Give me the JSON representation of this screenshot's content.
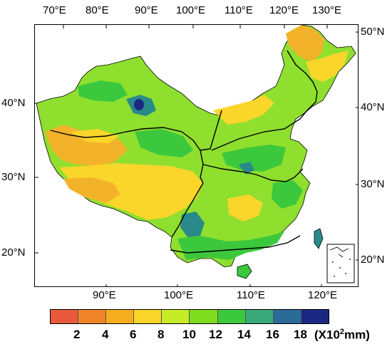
{
  "top_lon_labels": [
    "70°E",
    "80°E",
    "90°E",
    "100°E",
    "110°E",
    "120°E",
    "130°E"
  ],
  "bottom_lon_labels": [
    "90°E",
    "100°E",
    "110°E",
    "120°E"
  ],
  "left_lat_labels": [
    "40°N",
    "30°N",
    "20°N"
  ],
  "right_lat_labels": [
    "50°N",
    "40°N",
    "30°N",
    "20°N"
  ],
  "legend": {
    "values": [
      "2",
      "4",
      "6",
      "8",
      "10",
      "12",
      "14",
      "16",
      "18"
    ],
    "unit_prefix": "(X10",
    "unit_exp": "2",
    "unit_suffix": "mm)",
    "colors": [
      "#e8583c",
      "#f08428",
      "#f5ad1e",
      "#fad52a",
      "#c6ec28",
      "#7fdc1e",
      "#3cc83c",
      "#3aa87a",
      "#2a6b98",
      "#1a2882"
    ]
  },
  "map_colors": {
    "base_mid": "#8fdf2e",
    "dry": "#f2b32a",
    "semi_dry": "#fad52a",
    "humid": "#3cc83c",
    "wet": "#2a8a8a",
    "very_wet": "#1a2882",
    "boundary": "#000000"
  }
}
